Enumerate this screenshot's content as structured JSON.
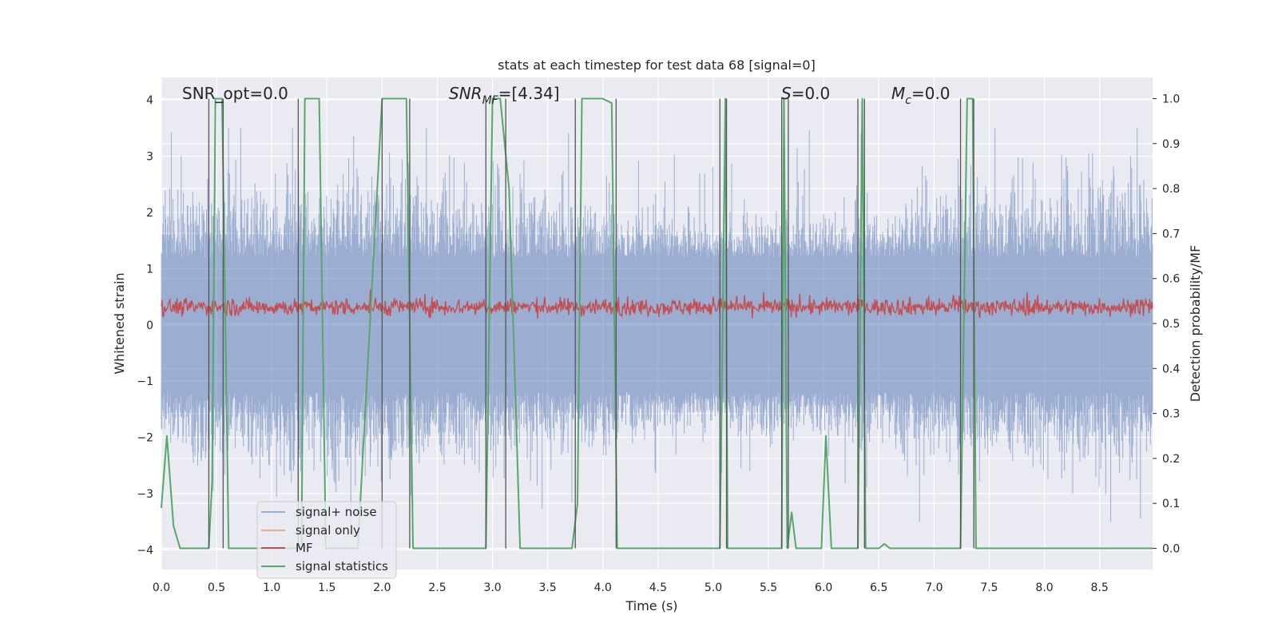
{
  "chart_data": {
    "type": "line",
    "title": "stats at each timestep for test data 68 [signal=0]",
    "xlabel": "Time (s)",
    "ylabel": "Whitened strain",
    "ylabel_right": "Detection probability/MF",
    "xlim": [
      0.0,
      8.98
    ],
    "ylim": [
      -4.35,
      4.4
    ],
    "ylim_right": [
      -0.047,
      1.047
    ],
    "xticks": [
      "0.0",
      "0.5",
      "1.0",
      "1.5",
      "2.0",
      "2.5",
      "3.0",
      "3.5",
      "4.0",
      "4.5",
      "5.0",
      "5.5",
      "6.0",
      "6.5",
      "7.0",
      "7.5",
      "8.0",
      "8.5"
    ],
    "yticks": [
      "−4",
      "−3",
      "−2",
      "−1",
      "0",
      "1",
      "2",
      "3",
      "4"
    ],
    "yticks_right": [
      "0.0",
      "0.1",
      "0.2",
      "0.3",
      "0.4",
      "0.5",
      "0.6",
      "0.7",
      "0.8",
      "0.9",
      "1.0"
    ],
    "grid": true,
    "legend_position": "lower-left",
    "annotations": {
      "snr_opt": "SNR_opt=0.0",
      "snr_mf_prefix": "SNR",
      "snr_mf_sub": "MF",
      "snr_mf_value": "=[4.34]",
      "s_main": "S",
      "s_value": "=0.0",
      "mc_main": "M",
      "mc_sub": "c",
      "mc_value": "=0.0"
    },
    "series": [
      {
        "name": "signal+ noise",
        "color": "#4c72b0",
        "values": "dense noise, approx. |y| <= 3.5"
      },
      {
        "name": "signal only",
        "color": "#dd8452",
        "values": []
      },
      {
        "name": "MF",
        "color": "#c44e52",
        "values": "dense, approx. 0.05 to 0.85"
      },
      {
        "name": "signal statistics",
        "color": "#55a868",
        "x": [
          0.0,
          0.05,
          0.11,
          0.17,
          0.24,
          0.3,
          0.36,
          0.43,
          0.46,
          0.49,
          0.55,
          0.61,
          0.64,
          0.69,
          0.85,
          1.04,
          1.22,
          1.27,
          1.3,
          1.36,
          1.43,
          1.49,
          1.54,
          1.61,
          1.78,
          2.0,
          2.05,
          2.22,
          2.28,
          2.34,
          2.42,
          2.5,
          2.6,
          2.94,
          3.0,
          3.02,
          3.07,
          3.15,
          3.25,
          3.35,
          3.45,
          3.5,
          3.65,
          3.72,
          3.77,
          3.81,
          3.86,
          3.9,
          3.95,
          4.0,
          4.08,
          4.13,
          4.19,
          4.24,
          4.35,
          4.5,
          4.7,
          4.9,
          5.06,
          5.11,
          5.13,
          5.19,
          5.3,
          5.4,
          5.5,
          5.56,
          5.62,
          5.64,
          5.67,
          5.71,
          5.75,
          5.82,
          5.9,
          5.98,
          6.02,
          6.07,
          6.11,
          6.18,
          6.25,
          6.31,
          6.35,
          6.38,
          6.44,
          6.5,
          6.55,
          6.6,
          6.67,
          6.75,
          7.0,
          7.24,
          7.3,
          7.35,
          7.38,
          7.43,
          7.5,
          7.7,
          8.0,
          8.5,
          8.98
        ],
        "y": [
          0.09,
          0.25,
          0.05,
          0.0,
          0.0,
          0.0,
          0.0,
          0.0,
          0.15,
          1.0,
          1.0,
          0.0,
          0.0,
          0.0,
          0.0,
          0.0,
          0.0,
          0.0,
          1.0,
          1.0,
          1.0,
          0.0,
          0.0,
          0.0,
          0.0,
          1.0,
          1.0,
          1.0,
          0.0,
          0.0,
          0.0,
          0.0,
          0.0,
          0.0,
          1.0,
          1.0,
          1.0,
          0.8,
          0.0,
          0.0,
          0.0,
          0.0,
          0.0,
          0.0,
          0.1,
          1.0,
          1.0,
          1.0,
          1.0,
          1.0,
          0.99,
          0.0,
          0.0,
          0.0,
          0.0,
          0.0,
          0.0,
          0.0,
          0.0,
          1.0,
          0.0,
          0.0,
          0.0,
          0.0,
          0.0,
          0.0,
          0.0,
          1.0,
          0.0,
          0.08,
          0.0,
          0.0,
          0.0,
          0.0,
          0.25,
          0.0,
          0.0,
          0.0,
          0.0,
          0.0,
          1.0,
          0.0,
          0.0,
          0.0,
          0.01,
          0.0,
          0.0,
          0.0,
          0.0,
          0.0,
          1.0,
          1.0,
          0.0,
          0.0,
          0.0,
          0.0,
          0.0,
          0.0,
          0.0
        ]
      }
    ],
    "vlines_x": [
      0.43,
      0.56,
      1.24,
      2.0,
      2.25,
      2.94,
      3.12,
      3.75,
      4.12,
      5.06,
      5.12,
      5.62,
      5.68,
      6.31,
      6.37,
      7.24,
      7.36
    ]
  }
}
